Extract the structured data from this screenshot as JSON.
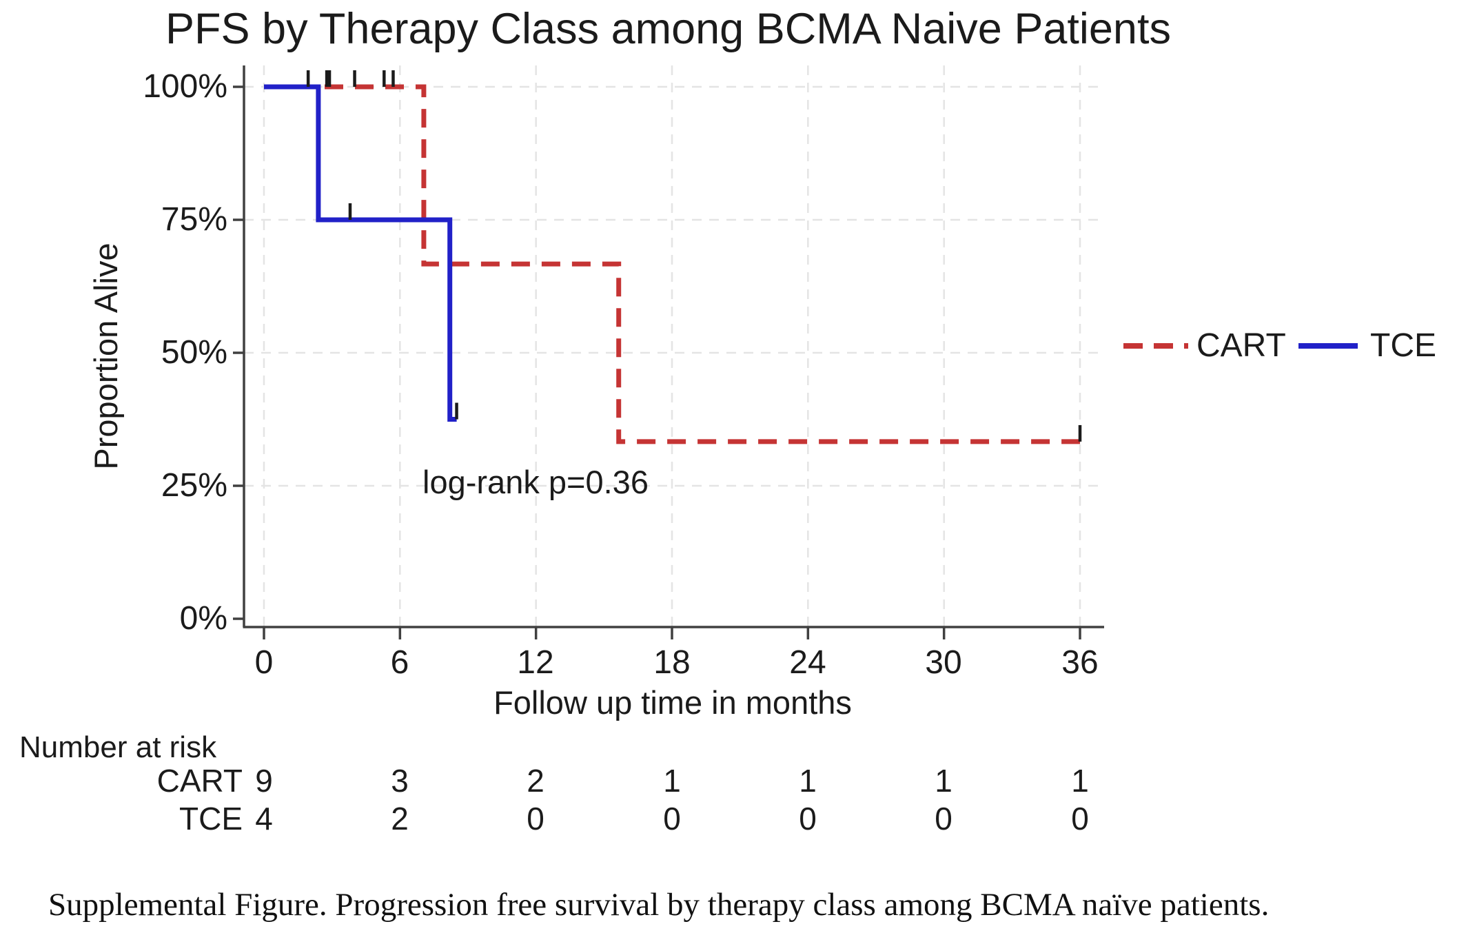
{
  "title": "PFS by Therapy Class among BCMA Naive Patients",
  "annotation": "log-rank p=0.36",
  "axes": {
    "y_label": "Proportion Alive",
    "x_label": "Follow up time in months",
    "y_ticks": [
      "100%",
      "75%",
      "50%",
      "25%",
      "0%"
    ],
    "x_ticks": [
      "0",
      "6",
      "12",
      "18",
      "24",
      "30",
      "36"
    ]
  },
  "legend": [
    {
      "label": "CART",
      "color": "#c53434",
      "style": "dashed"
    },
    {
      "label": "TCE",
      "color": "#2121c8",
      "style": "solid"
    }
  ],
  "risk_table": {
    "header": "Number at risk",
    "rows": [
      {
        "label": "CART",
        "values": [
          "9",
          "3",
          "2",
          "1",
          "1",
          "1",
          "1"
        ]
      },
      {
        "label": "TCE",
        "values": [
          "4",
          "2",
          "0",
          "0",
          "0",
          "0",
          "0"
        ]
      }
    ]
  },
  "caption": "Supplemental Figure. Progression free survival by therapy class among BCMA naïve patients.",
  "colors": {
    "cart": "#c53434",
    "tce": "#2121c8",
    "grid": "#e4e4e4",
    "axis": "#404040",
    "censor": "#1b1b1b"
  },
  "chart_data": {
    "type": "line",
    "subtype": "kaplan-meier-step",
    "title": "PFS by Therapy Class among BCMA Naive Patients",
    "xlabel": "Follow up time in months",
    "ylabel": "Proportion Alive",
    "x_range": [
      0,
      36
    ],
    "y_range": [
      0,
      100
    ],
    "x_ticks": [
      0,
      6,
      12,
      18,
      24,
      30,
      36
    ],
    "y_ticks": [
      0,
      25,
      50,
      75,
      100
    ],
    "grid": true,
    "legend_position": "right",
    "annotation": "log-rank p=0.36",
    "series": [
      {
        "name": "CART",
        "color": "#c53434",
        "dash": true,
        "points": [
          [
            0,
            100
          ],
          [
            7.05,
            100
          ],
          [
            7.05,
            66.7
          ],
          [
            15.65,
            66.7
          ],
          [
            15.65,
            33.3
          ],
          [
            36,
            33.3
          ]
        ],
        "censor_marks": [
          [
            1.95,
            100
          ],
          [
            2.77,
            100
          ],
          [
            2.89,
            100
          ],
          [
            4.0,
            100
          ],
          [
            5.3,
            100
          ],
          [
            5.7,
            100
          ],
          [
            36,
            33.3
          ]
        ]
      },
      {
        "name": "TCE",
        "color": "#2121c8",
        "dash": false,
        "points": [
          [
            0,
            100
          ],
          [
            2.4,
            100
          ],
          [
            2.4,
            75
          ],
          [
            8.2,
            75
          ],
          [
            8.2,
            37.5
          ],
          [
            8.5,
            37.5
          ]
        ],
        "censor_marks": [
          [
            3.8,
            75
          ],
          [
            8.5,
            37.5
          ]
        ]
      }
    ],
    "number_at_risk": {
      "times": [
        0,
        6,
        12,
        18,
        24,
        30,
        36
      ],
      "CART": [
        9,
        3,
        2,
        1,
        1,
        1,
        1
      ],
      "TCE": [
        4,
        2,
        0,
        0,
        0,
        0,
        0
      ]
    }
  }
}
